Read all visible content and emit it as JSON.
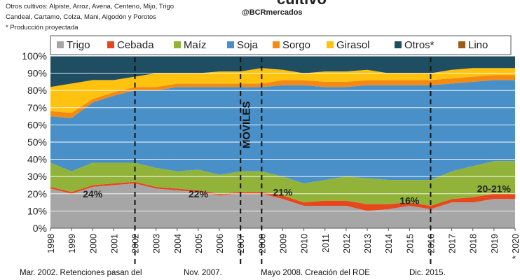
{
  "header": {
    "title_fragment": "cultivo",
    "handle": "@BCRmercados",
    "notes": [
      "Otros cultivos: Alpiste, Arroz, Avena, Centeno, Mijo, Trigo",
      "Candeal, Cartamo, Colza, Mani, Algodón y Porotos",
      "* Producción proyectada"
    ]
  },
  "colors": {
    "Trigo": "#a6a6a6",
    "Cebada": "#e8471e",
    "Maíz": "#92b33a",
    "Soja": "#4a90c8",
    "Sorgo": "#f58a13",
    "Girasol": "#ffc20e",
    "Otros*": "#1f4e62",
    "Lino": "#9c5c17"
  },
  "chart_data": {
    "type": "area",
    "stacked": true,
    "normalized": true,
    "x": [
      "1998",
      "1999",
      "2000",
      "2001",
      "2002",
      "2003",
      "2004",
      "2005",
      "2006",
      "2007",
      "2008",
      "2009",
      "2010",
      "2011",
      "2012",
      "2013",
      "2014",
      "2015",
      "2016",
      "2017",
      "2018",
      "2019",
      "* 2020"
    ],
    "ylim": [
      0,
      100
    ],
    "yticks": [
      "0%",
      "10%",
      "20%",
      "30%",
      "40%",
      "50%",
      "60%",
      "70%",
      "80%",
      "90%",
      "100%"
    ],
    "grid": "horizontal",
    "legend_position": "top",
    "series": [
      {
        "name": "Trigo",
        "values": [
          23,
          20,
          24,
          25,
          26,
          23,
          22,
          21,
          19,
          20,
          20,
          17,
          13,
          13,
          13,
          10,
          11,
          13,
          11,
          15,
          15,
          17,
          17
        ]
      },
      {
        "name": "Cebada",
        "values": [
          1,
          1,
          1,
          1,
          1,
          1,
          1,
          1,
          1,
          1,
          1,
          2,
          2,
          3,
          3,
          4,
          3,
          2,
          2,
          2,
          3,
          3,
          3
        ]
      },
      {
        "name": "Maíz",
        "values": [
          14,
          12,
          13,
          12,
          11,
          11,
          10,
          12,
          11,
          12,
          12,
          11,
          11,
          12,
          14,
          15,
          14,
          13,
          15,
          16,
          18,
          19,
          19
        ]
      },
      {
        "name": "Soja",
        "values": [
          27,
          31,
          35,
          39,
          42,
          45,
          49,
          48,
          51,
          49,
          49,
          53,
          57,
          54,
          52,
          54,
          55,
          55,
          55,
          51,
          49,
          47,
          47
        ]
      },
      {
        "name": "Sorgo",
        "values": [
          3,
          3,
          2,
          2,
          2,
          2,
          2,
          2,
          2,
          2,
          2,
          3,
          3,
          3,
          3,
          3,
          3,
          3,
          3,
          3,
          3,
          3,
          3
        ]
      },
      {
        "name": "Girasol",
        "values": [
          14,
          17,
          11,
          7,
          6,
          8,
          6,
          6,
          7,
          7,
          9,
          6,
          4,
          6,
          6,
          6,
          4,
          4,
          4,
          5,
          5,
          4,
          4
        ]
      },
      {
        "name": "Otros*",
        "values": [
          18,
          16,
          14,
          14,
          12,
          10,
          10,
          10,
          9,
          9,
          7,
          8,
          10,
          9,
          9,
          8,
          10,
          10,
          10,
          8,
          7,
          7,
          7
        ]
      },
      {
        "name": "Lino",
        "values": [
          0,
          0,
          0,
          0,
          0,
          0,
          0,
          0,
          0,
          0,
          0,
          0,
          0,
          0,
          0,
          0,
          0,
          0,
          0,
          0,
          0,
          0,
          0
        ]
      }
    ],
    "annotations": [
      {
        "text": "24%",
        "x": "2000",
        "y": 20
      },
      {
        "text": "22%",
        "x": "2005",
        "y": 20
      },
      {
        "text": "21%",
        "x": "2009",
        "y": 21
      },
      {
        "text": "16%",
        "x": "2015",
        "y": 16
      },
      {
        "text": "20-21%",
        "x": "2019",
        "y": 23
      },
      {
        "text": "MOVILES",
        "x": "2007",
        "y": 60
      }
    ],
    "vlines": [
      "2002",
      "2007",
      "2008",
      "2016"
    ]
  },
  "bottom_notes": [
    "Mar. 2002. Retenciones pasan del",
    "Nov. 2007.",
    "Mayo 2008. Creación del ROE",
    "Dic. 2015."
  ]
}
